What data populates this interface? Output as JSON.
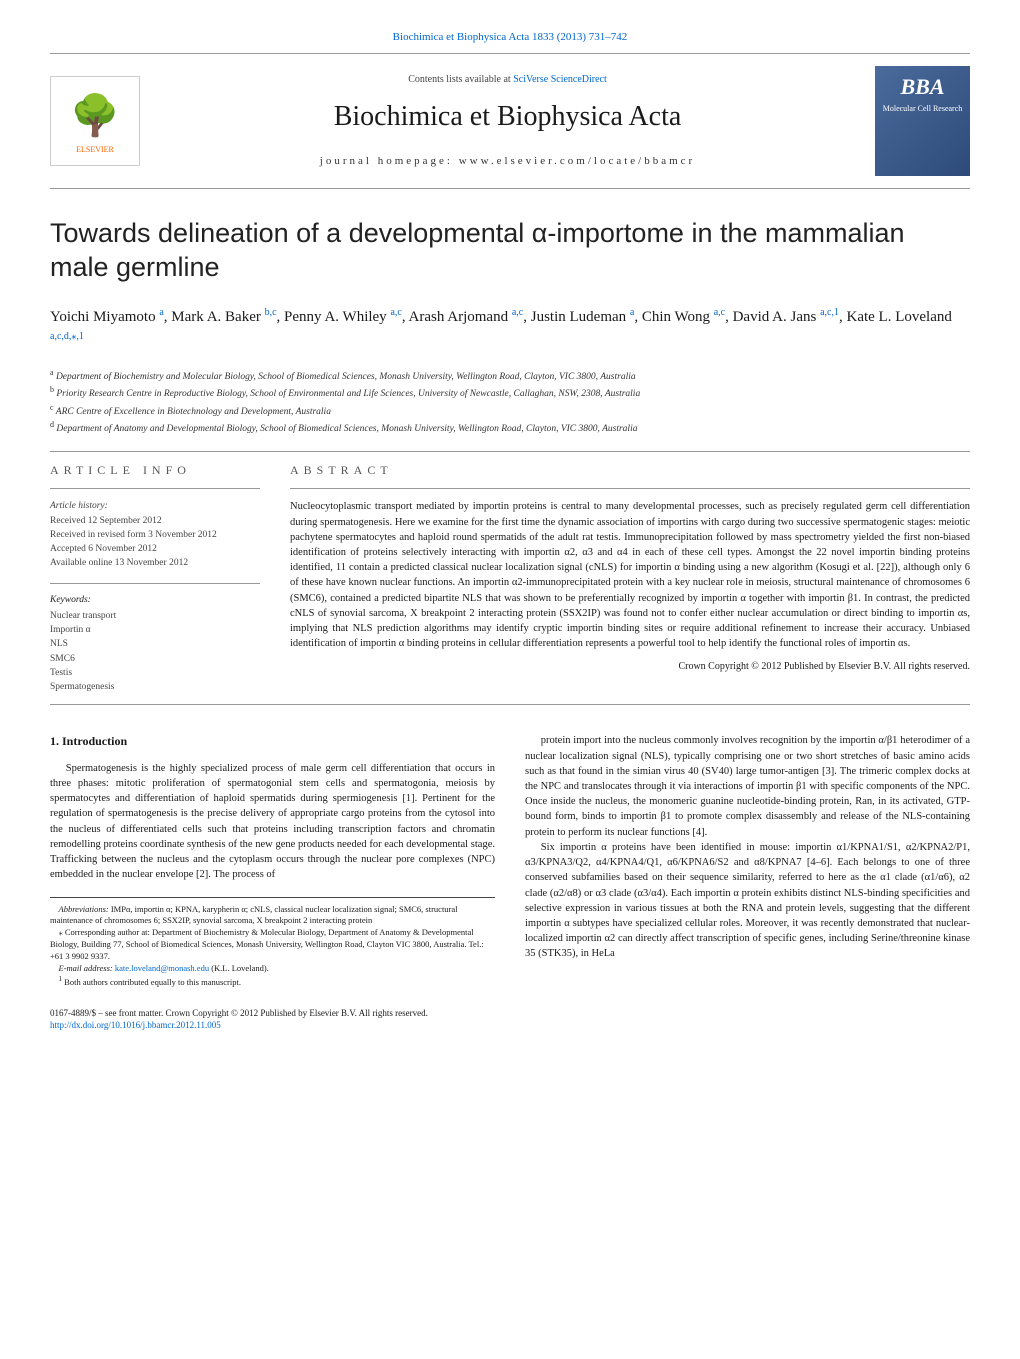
{
  "header": {
    "citation": "Biochimica et Biophysica Acta 1833 (2013) 731–742",
    "contents_prefix": "Contents lists available at ",
    "contents_link": "SciVerse ScienceDirect",
    "journal": "Biochimica et Biophysica Acta",
    "homepage_prefix": "journal homepage: ",
    "homepage": "www.elsevier.com/locate/bbamcr",
    "publisher": "ELSEVIER",
    "bba_title": "BBA",
    "bba_sub": "Molecular Cell Research"
  },
  "title": "Towards delineation of a developmental α-importome in the mammalian male germline",
  "authors": [
    {
      "name": "Yoichi Miyamoto",
      "sup": "a"
    },
    {
      "name": "Mark A. Baker",
      "sup": "b,c"
    },
    {
      "name": "Penny A. Whiley",
      "sup": "a,c"
    },
    {
      "name": "Arash Arjomand",
      "sup": "a,c"
    },
    {
      "name": "Justin Ludeman",
      "sup": "a"
    },
    {
      "name": "Chin Wong",
      "sup": "a,c"
    },
    {
      "name": "David A. Jans",
      "sup": "a,c,1"
    },
    {
      "name": "Kate L. Loveland",
      "sup": "a,c,d,⁎,1"
    }
  ],
  "affiliations": [
    {
      "sup": "a",
      "text": "Department of Biochemistry and Molecular Biology, School of Biomedical Sciences, Monash University, Wellington Road, Clayton, VIC 3800, Australia"
    },
    {
      "sup": "b",
      "text": "Priority Research Centre in Reproductive Biology, School of Environmental and Life Sciences, University of Newcastle, Callaghan, NSW, 2308, Australia"
    },
    {
      "sup": "c",
      "text": "ARC Centre of Excellence in Biotechnology and Development, Australia"
    },
    {
      "sup": "d",
      "text": "Department of Anatomy and Developmental Biology, School of Biomedical Sciences, Monash University, Wellington Road, Clayton, VIC 3800, Australia"
    }
  ],
  "article_info": {
    "heading": "ARTICLE INFO",
    "history_label": "Article history:",
    "history": [
      "Received 12 September 2012",
      "Received in revised form 3 November 2012",
      "Accepted 6 November 2012",
      "Available online 13 November 2012"
    ],
    "keywords_label": "Keywords:",
    "keywords": [
      "Nuclear transport",
      "Importin α",
      "NLS",
      "SMC6",
      "Testis",
      "Spermatogenesis"
    ]
  },
  "abstract": {
    "heading": "ABSTRACT",
    "text": "Nucleocytoplasmic transport mediated by importin proteins is central to many developmental processes, such as precisely regulated germ cell differentiation during spermatogenesis. Here we examine for the first time the dynamic association of importins with cargo during two successive spermatogenic stages: meiotic pachytene spermatocytes and haploid round spermatids of the adult rat testis. Immunoprecipitation followed by mass spectrometry yielded the first non-biased identification of proteins selectively interacting with importin α2, α3 and α4 in each of these cell types. Amongst the 22 novel importin binding proteins identified, 11 contain a predicted classical nuclear localization signal (cNLS) for importin α binding using a new algorithm (Kosugi et al. [22]), although only 6 of these have known nuclear functions. An importin α2-immunoprecipitated protein with a key nuclear role in meiosis, structural maintenance of chromosomes 6 (SMC6), contained a predicted bipartite NLS that was shown to be preferentially recognized by importin α together with importin β1. In contrast, the predicted cNLS of synovial sarcoma, X breakpoint 2 interacting protein (SSX2IP) was found not to confer either nuclear accumulation or direct binding to importin αs, implying that NLS prediction algorithms may identify cryptic importin binding sites or require additional refinement to increase their accuracy. Unbiased identification of importin α binding proteins in cellular differentiation represents a powerful tool to help identify the functional roles of importin αs.",
    "ref_link": "[22]",
    "copyright": "Crown Copyright © 2012 Published by Elsevier B.V. All rights reserved."
  },
  "intro": {
    "heading": "1. Introduction",
    "left_p1": "Spermatogenesis is the highly specialized process of male germ cell differentiation that occurs in three phases: mitotic proliferation of spermatogonial stem cells and spermatogonia, meiosis by spermatocytes and differentiation of haploid spermatids during spermiogenesis [1]. Pertinent for the regulation of spermatogenesis is the precise delivery of appropriate cargo proteins from the cytosol into the nucleus of differentiated cells such that proteins including transcription factors and chromatin remodelling proteins coordinate synthesis of the new gene products needed for each developmental stage. Trafficking between the nucleus and the cytoplasm occurs through the nuclear pore complexes (NPC) embedded in the nuclear envelope [2]. The process of",
    "right_p1": "protein import into the nucleus commonly involves recognition by the importin α/β1 heterodimer of a nuclear localization signal (NLS), typically comprising one or two short stretches of basic amino acids such as that found in the simian virus 40 (SV40) large tumor-antigen [3]. The trimeric complex docks at the NPC and translocates through it via interactions of importin β1 with specific components of the NPC. Once inside the nucleus, the monomeric guanine nucleotide-binding protein, Ran, in its activated, GTP-bound form, binds to importin β1 to promote complex disassembly and release of the NLS-containing protein to perform its nuclear functions [4].",
    "right_p2": "Six importin α proteins have been identified in mouse: importin α1/KPNA1/S1, α2/KPNA2/P1, α3/KPNA3/Q2, α4/KPNA4/Q1, α6/KPNA6/S2 and α8/KPNA7 [4–6]. Each belongs to one of three conserved subfamilies based on their sequence similarity, referred to here as the α1 clade (α1/α6), α2 clade (α2/α8) or α3 clade (α3/α4). Each importin α protein exhibits distinct NLS-binding specificities and selective expression in various tissues at both the RNA and protein levels, suggesting that the different importin α subtypes have specialized cellular roles. Moreover, it was recently demonstrated that nuclear-localized importin α2 can directly affect transcription of specific genes, including Serine/threonine kinase 35 (STK35), in HeLa",
    "refs": {
      "r1": "[1]",
      "r2": "[2]",
      "r3": "[3]",
      "r4": "[4]",
      "r46": "[4–6]"
    }
  },
  "footnotes": {
    "abbrev_label": "Abbreviations:",
    "abbrev": " IMPα, importin α; KPNA, karypherin α; cNLS, classical nuclear localization signal; SMC6, structural maintenance of chromosomes 6; SSX2IP, synovial sarcoma, X breakpoint 2 interacting protein",
    "corr_sym": "⁎",
    "corr": "Corresponding author at: Department of Biochemistry & Molecular Biology, Department of Anatomy & Developmental Biology, Building 77, School of Biomedical Sciences, Monash University, Wellington Road, Clayton VIC 3800, Australia. Tel.: +61 3 9902 9337.",
    "email_label": "E-mail address: ",
    "email": "kate.loveland@monash.edu",
    "email_suffix": " (K.L. Loveland).",
    "note1_sym": "1",
    "note1": "Both authors contributed equally to this manuscript."
  },
  "footer": {
    "line1": "0167-4889/$ – see front matter. Crown Copyright © 2012 Published by Elsevier B.V. All rights reserved.",
    "doi": "http://dx.doi.org/10.1016/j.bbamcr.2012.11.005"
  },
  "colors": {
    "link": "#0066cc",
    "text": "#1a1a1a",
    "rule": "#999999",
    "elsevier_orange": "#ff6600",
    "bba_bg_start": "#4a6b9c",
    "bba_bg_end": "#2d4a7a"
  }
}
